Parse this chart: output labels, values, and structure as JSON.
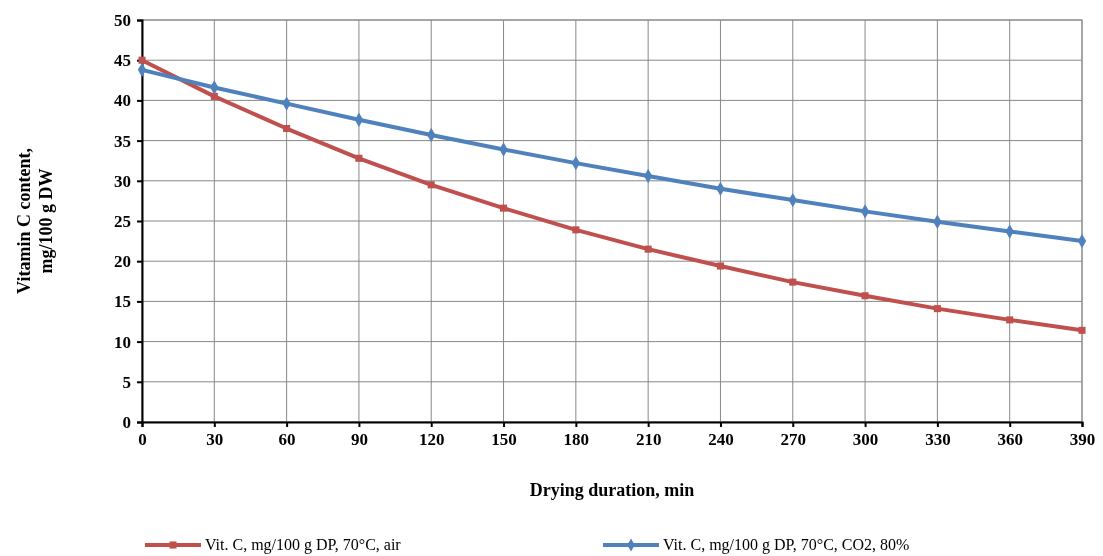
{
  "chart_data": {
    "type": "line",
    "xlabel": "Drying duration, min",
    "ylabel": "Vitamin C content,\nmg/100 g  DW",
    "x": [
      0,
      30,
      60,
      90,
      120,
      150,
      180,
      210,
      240,
      270,
      300,
      330,
      360,
      390
    ],
    "xlim": [
      0,
      390
    ],
    "xticks": [
      0,
      30,
      60,
      90,
      120,
      150,
      180,
      210,
      240,
      270,
      300,
      330,
      360,
      390
    ],
    "ylim": [
      0,
      50
    ],
    "yticks": [
      0,
      5,
      10,
      15,
      20,
      25,
      30,
      35,
      40,
      45,
      50
    ],
    "grid": true,
    "legend": "bottom",
    "series": [
      {
        "name": "Vit. C, mg/100 g DP, 70°C, air",
        "color": "#c0504d",
        "marker": "square",
        "values": [
          45.0,
          40.5,
          36.5,
          32.8,
          29.5,
          26.6,
          23.9,
          21.5,
          19.4,
          17.4,
          15.7,
          14.1,
          12.7,
          11.4
        ]
      },
      {
        "name": "Vit. C, mg/100 g DP, 70°C, CO2, 80%",
        "color": "#4f81bd",
        "marker": "diamond",
        "values": [
          43.8,
          41.6,
          39.6,
          37.6,
          35.7,
          33.9,
          32.2,
          30.6,
          29.0,
          27.6,
          26.2,
          24.9,
          23.7,
          22.5
        ]
      }
    ]
  }
}
